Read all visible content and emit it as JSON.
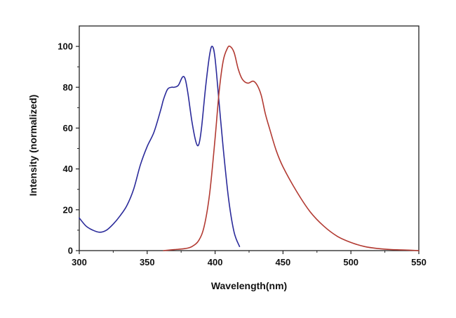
{
  "chart_data": {
    "type": "line",
    "xlabel": "Wavelength(nm)",
    "ylabel": "Intensity (normalized)",
    "xlim": [
      300,
      550
    ],
    "ylim": [
      0,
      110
    ],
    "x_ticks": [
      300,
      350,
      400,
      450,
      500,
      550
    ],
    "y_ticks": [
      0,
      20,
      40,
      60,
      80,
      100
    ],
    "grid": false,
    "legend": "none",
    "series": [
      {
        "color": "#2a2a9a",
        "x": [
          300,
          305,
          310,
          315,
          320,
          325,
          330,
          335,
          340,
          345,
          350,
          355,
          360,
          362,
          365,
          368,
          370,
          373,
          376,
          378,
          380,
          383,
          386,
          388,
          390,
          393,
          396,
          398,
          400,
          403,
          406,
          410,
          414,
          418
        ],
        "y": [
          16,
          12,
          10,
          9,
          10,
          13,
          17,
          22,
          30,
          42,
          51,
          58,
          69,
          74,
          79,
          80,
          80,
          81,
          85,
          84,
          77,
          63,
          53,
          52,
          60,
          80,
          96,
          100,
          94,
          72,
          50,
          25,
          9,
          2
        ]
      },
      {
        "color": "#b23a32",
        "x": [
          362,
          370,
          378,
          383,
          388,
          392,
          396,
          400,
          403,
          406,
          409,
          411,
          414,
          417,
          420,
          424,
          428,
          431,
          434,
          437,
          440,
          445,
          450,
          460,
          470,
          480,
          490,
          500,
          510,
          520,
          530,
          540,
          550
        ],
        "y": [
          0,
          0.5,
          1,
          2,
          5,
          12,
          28,
          55,
          78,
          93,
          99,
          100,
          97,
          89,
          84,
          82,
          83,
          81,
          76,
          67,
          60,
          49,
          41,
          29,
          19,
          12,
          7,
          4,
          2,
          1,
          0.5,
          0.3,
          0
        ]
      }
    ]
  }
}
